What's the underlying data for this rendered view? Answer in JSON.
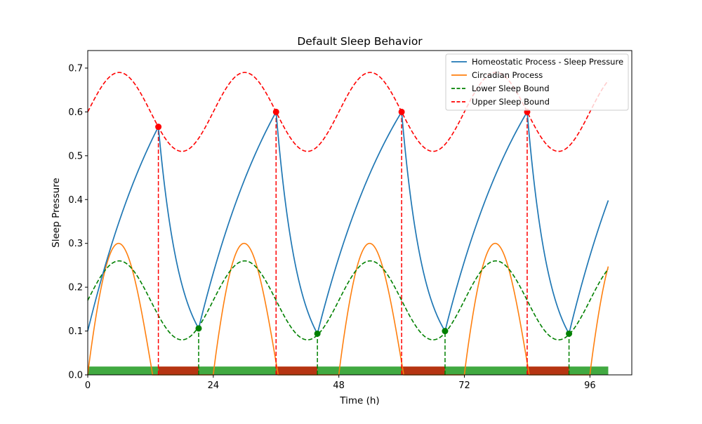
{
  "chart_data": {
    "type": "line",
    "title": "Default Sleep Behavior",
    "xlabel": "Time (h)",
    "ylabel": "Sleep Pressure",
    "xlim": [
      0,
      104
    ],
    "ylim": [
      0,
      0.74
    ],
    "xticks": [
      0,
      24,
      48,
      72,
      96
    ],
    "yticks": [
      0.0,
      0.1,
      0.2,
      0.3,
      0.4,
      0.5,
      0.6,
      0.7
    ],
    "xtick_labels": [
      "0",
      "24",
      "48",
      "72",
      "96"
    ],
    "ytick_labels": [
      "0.0",
      "0.1",
      "0.2",
      "0.3",
      "0.4",
      "0.5",
      "0.6",
      "0.7"
    ],
    "grid": false,
    "legend_position": "top-right",
    "legend": [
      {
        "label": "Homeostatic Process - Sleep Pressure",
        "color": "#1f77b4",
        "style": "solid"
      },
      {
        "label": "Circadian Process",
        "color": "#ff7f0e",
        "style": "solid"
      },
      {
        "label": "Lower Sleep Bound",
        "color": "#008000",
        "style": "dashed"
      },
      {
        "label": "Upper Sleep Bound",
        "color": "#ff0000",
        "style": "dashed"
      }
    ],
    "circadian": {
      "mean": 0.6,
      "amplitude": 0.09,
      "period": 24,
      "peak_hour": 6,
      "lower_offset": 0.43
    },
    "sleep_onsets": [
      {
        "t": 13.5,
        "p": 0.566
      },
      {
        "t": 36,
        "p": 0.6
      },
      {
        "t": 60,
        "p": 0.6
      },
      {
        "t": 84,
        "p": 0.6
      }
    ],
    "wake_times": [
      {
        "t": 21.2,
        "p": 0.106
      },
      {
        "t": 43.9,
        "p": 0.094
      },
      {
        "t": 68.3,
        "p": 0.1
      },
      {
        "t": 92,
        "p": 0.094
      }
    ],
    "homeostatic_start": 0.1,
    "homeostatic_end": {
      "t": 99.5,
      "p": 0.398
    },
    "wake_segments": [
      [
        0,
        13.5
      ],
      [
        21.2,
        36
      ],
      [
        43.9,
        60
      ],
      [
        68.3,
        84
      ],
      [
        92,
        99.5
      ]
    ],
    "sleep_segments": [
      [
        13.5,
        21.2
      ],
      [
        36,
        43.9
      ],
      [
        60,
        68.3
      ],
      [
        84,
        92
      ]
    ],
    "state_bar_height": 0.019,
    "colors": {
      "homeostatic": "#1f77b4",
      "circadian": "#ff7f0e",
      "lower_bound": "#008000",
      "upper_bound": "#ff0000",
      "wake_bar": "#2ca02c",
      "sleep_bar": "#b22a05"
    },
    "x_end": 99.5
  }
}
